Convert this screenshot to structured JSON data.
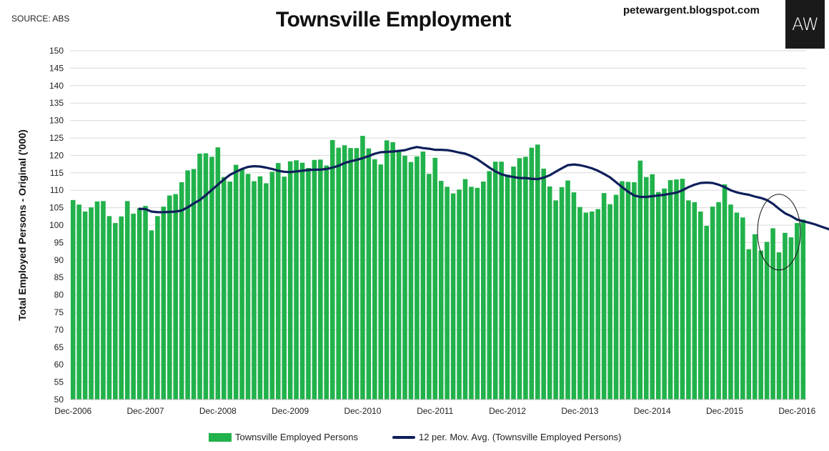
{
  "header": {
    "source": "SOURCE: ABS",
    "title": "Townsville Employment",
    "blog": "petewargent.blogspot.com",
    "logo": "AW"
  },
  "colors": {
    "bars": "#21b24b",
    "line": "#0e1f5b",
    "grid": "#d9d9d9"
  },
  "chart_data": {
    "type": "bar",
    "title": "Townsville Employment",
    "xlabel": "",
    "ylabel": "Total Employed Persons - Original ('000)",
    "ylim": [
      50,
      150
    ],
    "yticks": [
      50,
      55,
      60,
      65,
      70,
      75,
      80,
      85,
      90,
      95,
      100,
      105,
      110,
      115,
      120,
      125,
      130,
      135,
      140,
      145,
      150
    ],
    "xtick_labels": [
      "Dec-2006",
      "Dec-2007",
      "Dec-2008",
      "Dec-2009",
      "Dec-2010",
      "Dec-2011",
      "Dec-2012",
      "Dec-2013",
      "Dec-2014",
      "Dec-2015",
      "Dec-2016"
    ],
    "xtick_positions": [
      0,
      12,
      24,
      36,
      48,
      60,
      72,
      84,
      96,
      108,
      120
    ],
    "series": [
      {
        "name": "Townsville Employed Persons",
        "kind": "bar",
        "values": [
          107.2,
          105.9,
          103.9,
          105.1,
          106.8,
          106.9,
          102.6,
          100.6,
          102.5,
          106.9,
          103.3,
          104.8,
          105.5,
          98.5,
          102.6,
          105.3,
          108.5,
          108.9,
          112.3,
          115.7,
          116.1,
          120.5,
          120.6,
          119.6,
          122.3,
          113.8,
          112.5,
          117.3,
          116.0,
          114.7,
          112.6,
          114.0,
          112.0,
          115.3,
          117.8,
          113.9,
          118.3,
          118.6,
          117.9,
          116.4,
          118.7,
          118.8,
          117.1,
          124.4,
          122.2,
          122.9,
          122.1,
          122.1,
          125.6,
          122.0,
          118.9,
          117.4,
          124.3,
          123.8,
          121.6,
          119.9,
          118.1,
          119.7,
          121.1,
          114.7,
          119.3,
          112.7,
          111.0,
          109.1,
          110.2,
          113.2,
          111.0,
          110.7,
          112.5,
          115.5,
          118.2,
          118.2,
          114.5,
          116.8,
          119.2,
          119.6,
          122.2,
          123.1,
          116.2,
          111.1,
          107.1,
          110.9,
          112.8,
          109.4,
          105.2,
          103.6,
          103.9,
          104.6,
          109.2,
          106.0,
          108.7,
          112.6,
          112.4,
          112.3,
          118.5,
          113.8,
          114.6,
          109.5,
          110.5,
          112.9,
          113.1,
          113.3,
          107.1,
          106.6,
          103.9,
          99.8,
          105.3,
          106.6,
          111.7,
          105.9,
          103.6,
          102.2,
          93.1,
          97.4,
          92.7,
          95.2,
          99.1,
          92.2,
          97.8,
          96.5,
          100.6,
          101.6
        ],
        "note": "monthly bars, Dec-2006 through Dec-2016 (121 values)"
      },
      {
        "name": "12 per. Mov. Avg. (Townsville Employed Persons)",
        "kind": "line",
        "start_index": 11,
        "values": [
          104.7,
          104.6,
          103.9,
          103.7,
          103.7,
          103.8,
          103.9,
          104.2,
          105.1,
          106.2,
          107.2,
          108.6,
          110.1,
          111.6,
          113.1,
          114.4,
          115.3,
          116.1,
          116.7,
          116.9,
          116.8,
          116.5,
          116.1,
          115.6,
          115.3,
          115.2,
          115.4,
          115.6,
          115.8,
          115.9,
          115.9,
          116.1,
          116.5,
          117.0,
          117.8,
          118.3,
          118.7,
          119.2,
          119.8,
          120.5,
          120.9,
          121.0,
          121.1,
          121.3,
          121.5,
          122.0,
          122.4,
          122.1,
          121.9,
          121.6,
          121.6,
          121.5,
          121.2,
          120.8,
          120.5,
          119.8,
          118.9,
          117.7,
          116.5,
          115.4,
          114.6,
          114.1,
          113.8,
          113.5,
          113.5,
          113.3,
          113.2,
          113.6,
          114.3,
          115.3,
          116.3,
          117.2,
          117.4,
          117.2,
          116.8,
          116.3,
          115.6,
          114.7,
          113.7,
          112.3,
          110.9,
          109.6,
          108.5,
          108.1,
          108.1,
          108.3,
          108.5,
          108.7,
          109.0,
          109.3,
          110.0,
          110.9,
          111.6,
          112.1,
          112.2,
          112.1,
          111.6,
          110.9,
          110.0,
          109.4,
          109.0,
          108.7,
          108.2,
          107.8,
          107.2,
          106.1,
          104.7,
          103.4,
          102.6,
          101.6,
          101.1,
          100.7,
          100.2,
          99.6,
          99.0,
          98.3,
          97.7,
          97.6
        ]
      }
    ],
    "legend": [
      "Townsville Employed Persons",
      "12 per. Mov. Avg. (Townsville Employed Persons)"
    ],
    "legend_position": "bottom",
    "grid": true,
    "annotation": "circle highlighting late-2016 readings"
  }
}
